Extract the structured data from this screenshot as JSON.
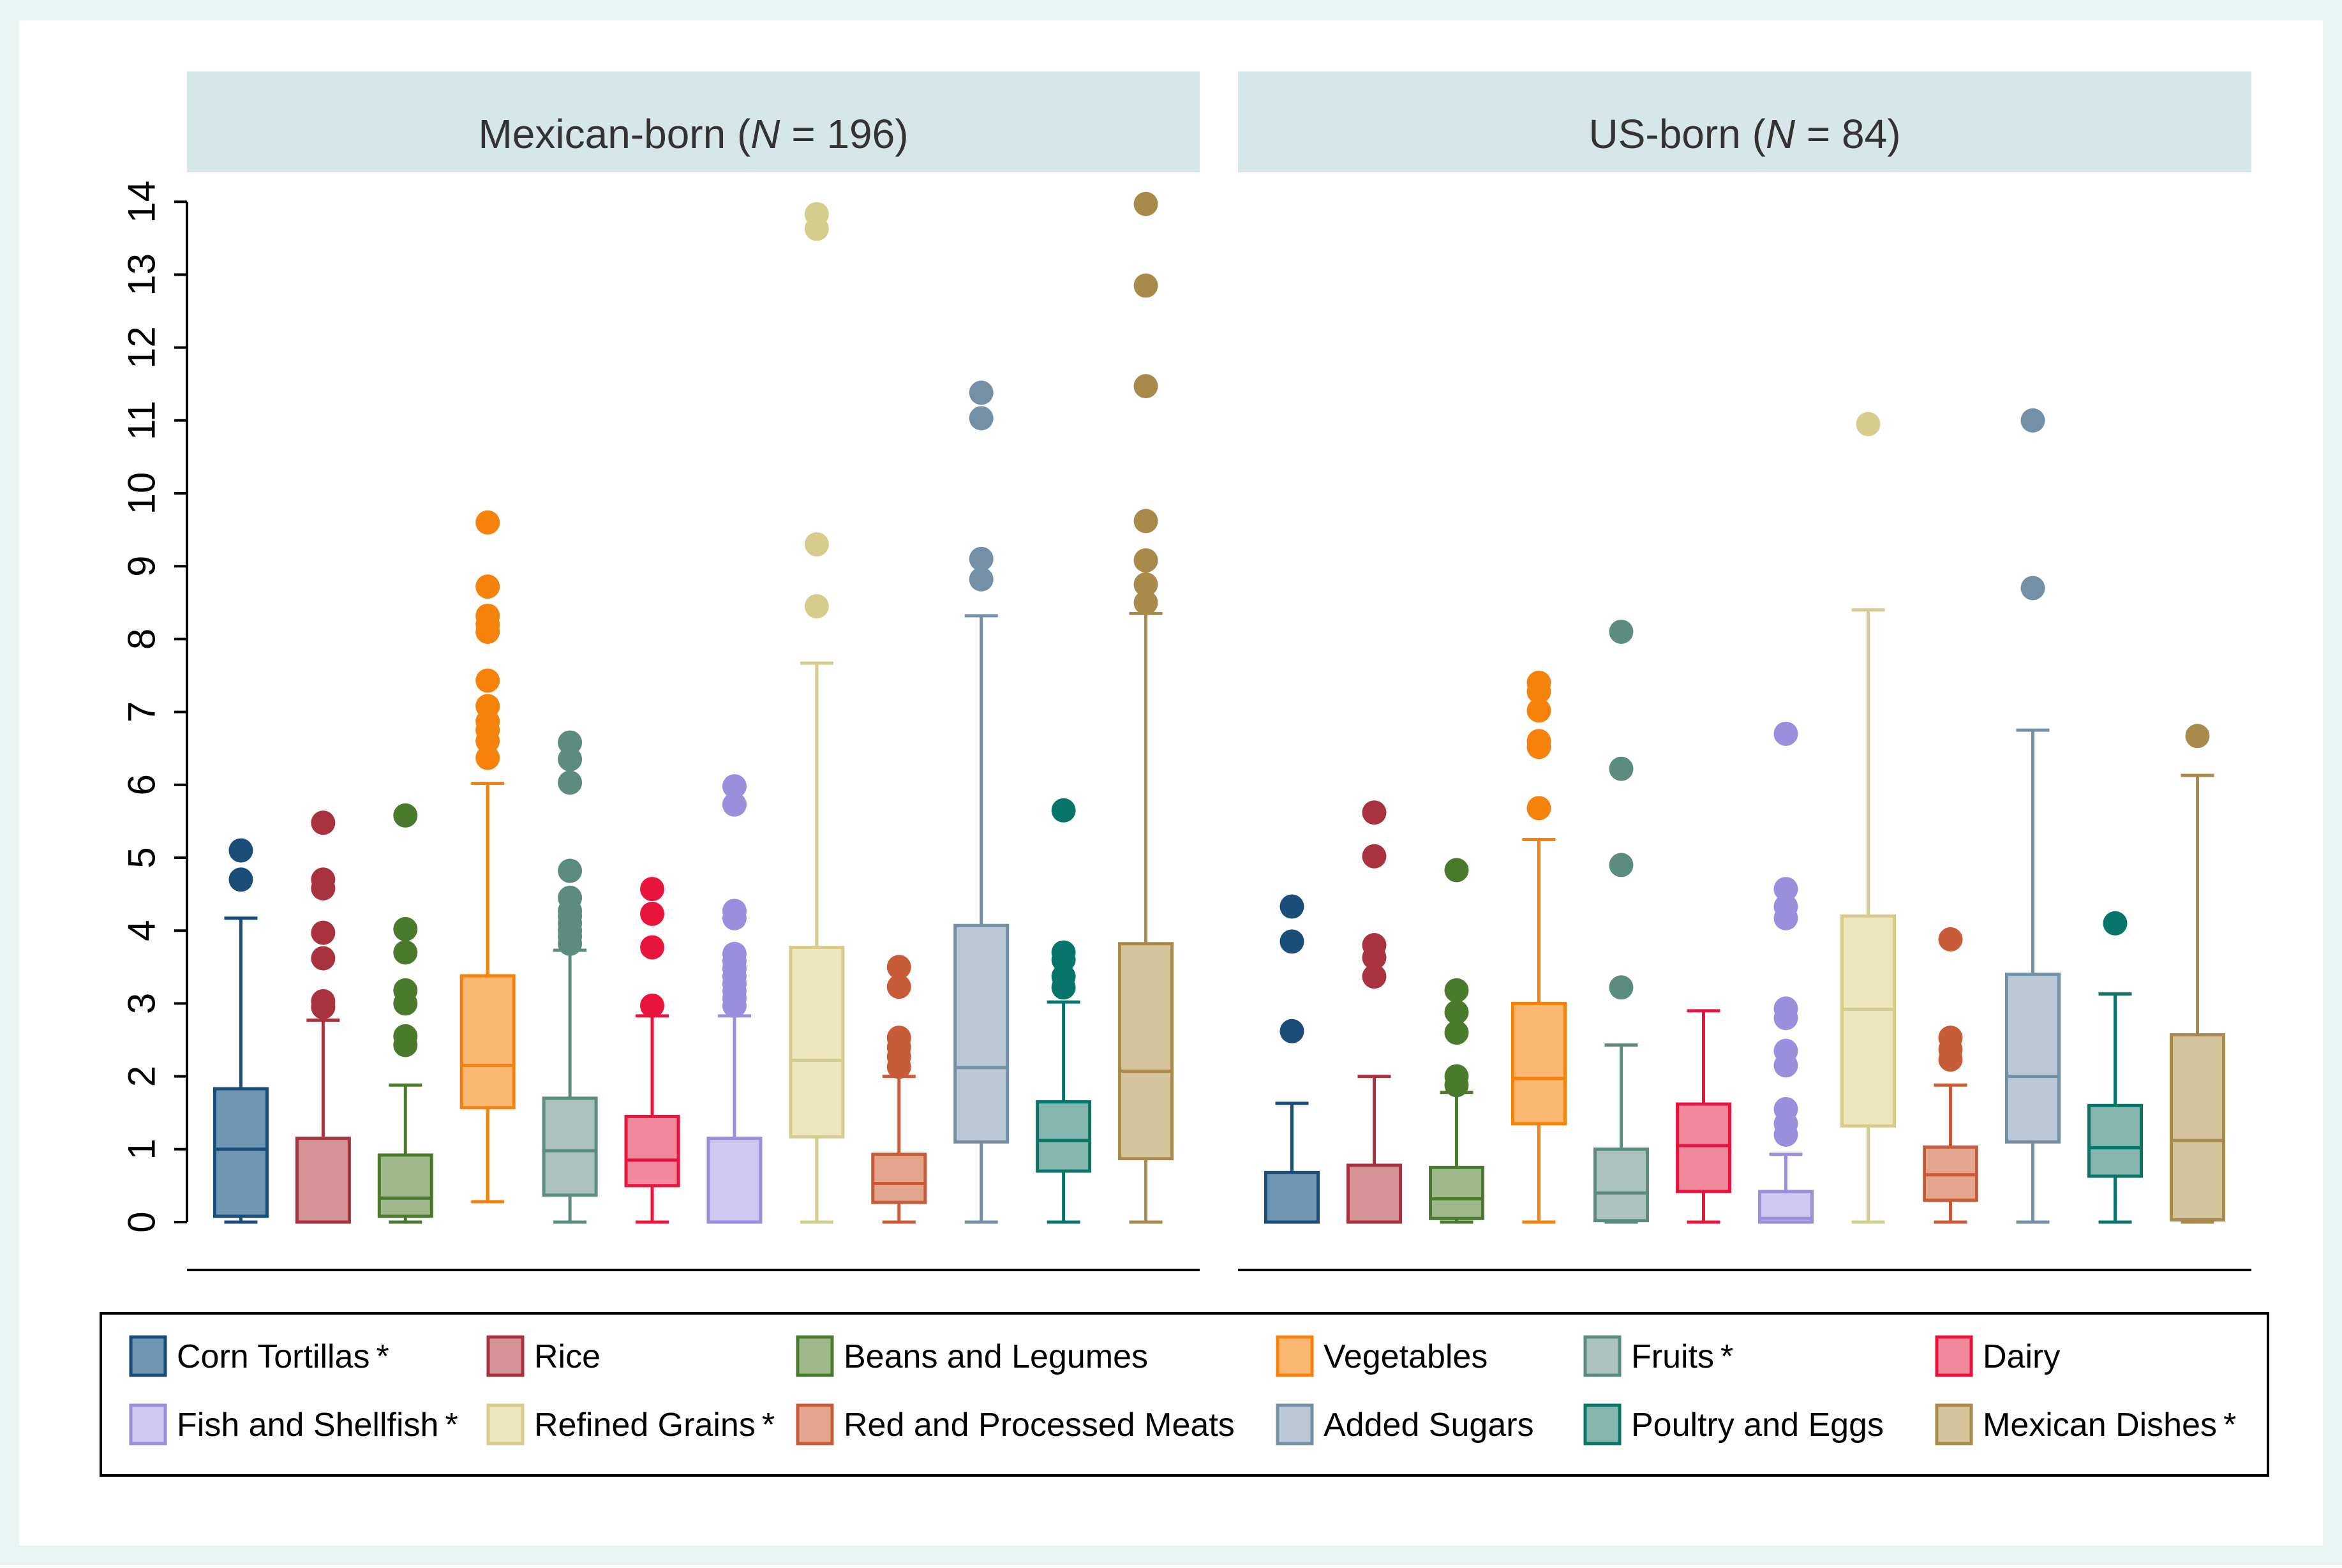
{
  "chart_data": {
    "type": "boxplot",
    "ylabel": "",
    "ylim": [
      0,
      14
    ],
    "yticks": [
      "0",
      "1",
      "2",
      "3",
      "4",
      "5",
      "6",
      "7",
      "8",
      "9",
      "10",
      "11",
      "12",
      "13",
      "14"
    ],
    "panels": [
      {
        "title_prefix": "Mexican-born (",
        "title_n": "N",
        "title_suffix": " = 196)",
        "boxes": [
          {
            "category": "Corn Tortillas",
            "min": 0,
            "q1": 0.08,
            "median": 1.0,
            "q3": 1.83,
            "max": 4.17,
            "outliers": [
              4.7,
              5.1
            ]
          },
          {
            "category": "Rice",
            "min": 0,
            "q1": 0,
            "median": 0,
            "q3": 1.15,
            "max": 2.77,
            "outliers": [
              2.95,
              3.03,
              3.62,
              3.97,
              4.58,
              4.7,
              5.48
            ]
          },
          {
            "category": "Beans and Legumes",
            "min": 0,
            "q1": 0.08,
            "median": 0.33,
            "q3": 0.92,
            "max": 1.88,
            "outliers": [
              2.43,
              2.55,
              3.0,
              3.18,
              3.7,
              4.02,
              5.58
            ]
          },
          {
            "category": "Vegetables",
            "min": 0.28,
            "q1": 1.57,
            "median": 2.15,
            "q3": 3.38,
            "max": 6.02,
            "outliers": [
              6.37,
              6.6,
              6.75,
              6.87,
              7.08,
              7.43,
              8.1,
              8.2,
              8.32,
              8.72,
              9.6
            ]
          },
          {
            "category": "Fruits",
            "min": 0,
            "q1": 0.37,
            "median": 0.98,
            "q3": 1.7,
            "max": 3.73,
            "outliers": [
              3.82,
              3.92,
              4.0,
              4.1,
              4.2,
              4.27,
              4.45,
              4.82,
              6.03,
              6.35,
              6.58
            ]
          },
          {
            "category": "Dairy",
            "min": 0,
            "q1": 0.5,
            "median": 0.85,
            "q3": 1.45,
            "max": 2.83,
            "outliers": [
              2.97,
              3.77,
              4.23,
              4.57
            ]
          },
          {
            "category": "Fish and Shellfish",
            "min": 0,
            "q1": 0,
            "median": 0,
            "q3": 1.15,
            "max": 2.83,
            "outliers": [
              2.97,
              3.07,
              3.17,
              3.27,
              3.37,
              3.48,
              3.58,
              3.68,
              4.17,
              4.27,
              5.73,
              5.98
            ]
          },
          {
            "category": "Refined Grains",
            "min": 0,
            "q1": 1.17,
            "median": 2.22,
            "q3": 3.77,
            "max": 7.67,
            "outliers": [
              8.45,
              9.3,
              13.63,
              13.83
            ]
          },
          {
            "category": "Red and Processed Meats",
            "min": 0,
            "q1": 0.27,
            "median": 0.53,
            "q3": 0.93,
            "max": 2.0,
            "outliers": [
              2.13,
              2.27,
              2.4,
              2.53,
              3.23,
              3.5
            ]
          },
          {
            "category": "Added Sugars",
            "min": 0,
            "q1": 1.1,
            "median": 2.12,
            "q3": 4.07,
            "max": 8.32,
            "outliers": [
              8.82,
              9.1,
              11.03,
              11.38
            ]
          },
          {
            "category": "Poultry and Eggs",
            "min": 0,
            "q1": 0.7,
            "median": 1.12,
            "q3": 1.65,
            "max": 3.02,
            "outliers": [
              3.22,
              3.37,
              3.6,
              3.7,
              5.65
            ]
          },
          {
            "category": "Mexican Dishes",
            "min": 0,
            "q1": 0.87,
            "median": 2.07,
            "q3": 3.82,
            "max": 8.35,
            "outliers": [
              8.5,
              8.75,
              9.08,
              9.62,
              11.47,
              12.85,
              13.97
            ]
          }
        ]
      },
      {
        "title_prefix": "US-born (",
        "title_n": "N",
        "title_suffix": " = 84)",
        "boxes": [
          {
            "category": "Corn Tortillas",
            "min": 0,
            "q1": 0,
            "median": 0,
            "q3": 0.68,
            "max": 1.63,
            "outliers": [
              2.62,
              3.85,
              4.33
            ]
          },
          {
            "category": "Rice",
            "min": 0,
            "q1": 0,
            "median": 0,
            "q3": 0.78,
            "max": 2.0,
            "outliers": [
              3.37,
              3.63,
              3.8,
              5.02,
              5.62
            ]
          },
          {
            "category": "Beans and Legumes",
            "min": 0,
            "q1": 0.05,
            "median": 0.32,
            "q3": 0.75,
            "max": 1.78,
            "outliers": [
              1.88,
              2.0,
              2.6,
              2.88,
              3.18,
              4.83
            ]
          },
          {
            "category": "Vegetables",
            "min": 0,
            "q1": 1.35,
            "median": 1.97,
            "q3": 3.0,
            "max": 5.25,
            "outliers": [
              5.68,
              6.52,
              6.6,
              7.02,
              7.28,
              7.4
            ]
          },
          {
            "category": "Fruits",
            "min": 0,
            "q1": 0.02,
            "median": 0.4,
            "q3": 1.0,
            "max": 2.43,
            "outliers": [
              3.22,
              4.9,
              6.22,
              8.1
            ]
          },
          {
            "category": "Dairy",
            "min": 0,
            "q1": 0.42,
            "median": 1.05,
            "q3": 1.62,
            "max": 2.9,
            "outliers": []
          },
          {
            "category": "Fish and Shellfish",
            "min": 0,
            "q1": 0,
            "median": 0.05,
            "q3": 0.42,
            "max": 0.93,
            "outliers": [
              1.2,
              1.35,
              1.55,
              2.15,
              2.35,
              2.8,
              2.93,
              4.17,
              4.33,
              4.57,
              6.7
            ]
          },
          {
            "category": "Refined Grains",
            "min": 0,
            "q1": 1.32,
            "median": 2.92,
            "q3": 4.2,
            "max": 8.4,
            "outliers": [
              10.95
            ]
          },
          {
            "category": "Red and Processed Meats",
            "min": 0,
            "q1": 0.3,
            "median": 0.65,
            "q3": 1.03,
            "max": 1.88,
            "outliers": [
              2.23,
              2.37,
              2.53,
              3.88
            ]
          },
          {
            "category": "Added Sugars",
            "min": 0,
            "q1": 1.1,
            "median": 2.0,
            "q3": 3.4,
            "max": 6.75,
            "outliers": [
              8.7,
              11.0
            ]
          },
          {
            "category": "Poultry and Eggs",
            "min": 0,
            "q1": 0.63,
            "median": 1.02,
            "q3": 1.6,
            "max": 3.13,
            "outliers": [
              4.1
            ]
          },
          {
            "category": "Mexican Dishes",
            "min": 0,
            "q1": 0.03,
            "median": 1.12,
            "q3": 2.57,
            "max": 6.13,
            "outliers": [
              6.67
            ]
          }
        ]
      }
    ],
    "legend": [
      {
        "label": "Corn Tortillas",
        "asterisk": true,
        "dark": "#1a4e79",
        "fill": "#6f96b3"
      },
      {
        "label": "Rice",
        "asterisk": false,
        "dark": "#a8323e",
        "fill": "#d49395"
      },
      {
        "label": "Beans and Legumes",
        "asterisk": false,
        "dark": "#4a7a2c",
        "fill": "#a0b98c"
      },
      {
        "label": "Vegetables",
        "asterisk": false,
        "dark": "#f5820b",
        "fill": "#fcb772"
      },
      {
        "label": "Fruits",
        "asterisk": true,
        "dark": "#5c8c80",
        "fill": "#acc3bd"
      },
      {
        "label": "Dairy",
        "asterisk": false,
        "dark": "#e8143e",
        "fill": "#f2889b"
      },
      {
        "label": "Fish and Shellfish",
        "asterisk": true,
        "dark": "#9a8fdc",
        "fill": "#cec8ef"
      },
      {
        "label": "Refined Grains",
        "asterisk": true,
        "dark": "#d6cc8c",
        "fill": "#ede7bf"
      },
      {
        "label": "Red and Processed Meats",
        "asterisk": false,
        "dark": "#c95c38",
        "fill": "#e3a58c"
      },
      {
        "label": "Added Sugars",
        "asterisk": false,
        "dark": "#7390a6",
        "fill": "#bac9d5"
      },
      {
        "label": "Poultry and Eggs",
        "asterisk": false,
        "dark": "#08756a",
        "fill": "#84b6ae"
      },
      {
        "label": "Mexican Dishes",
        "asterisk": true,
        "dark": "#a88b4a",
        "fill": "#d6c49c"
      }
    ],
    "asterisk_symbol": "*"
  },
  "colors": {
    "page_background": "#e9f3f1",
    "strip_background": "#d6e7ea",
    "plot_background": "#ffffff",
    "axis": "#000000"
  }
}
